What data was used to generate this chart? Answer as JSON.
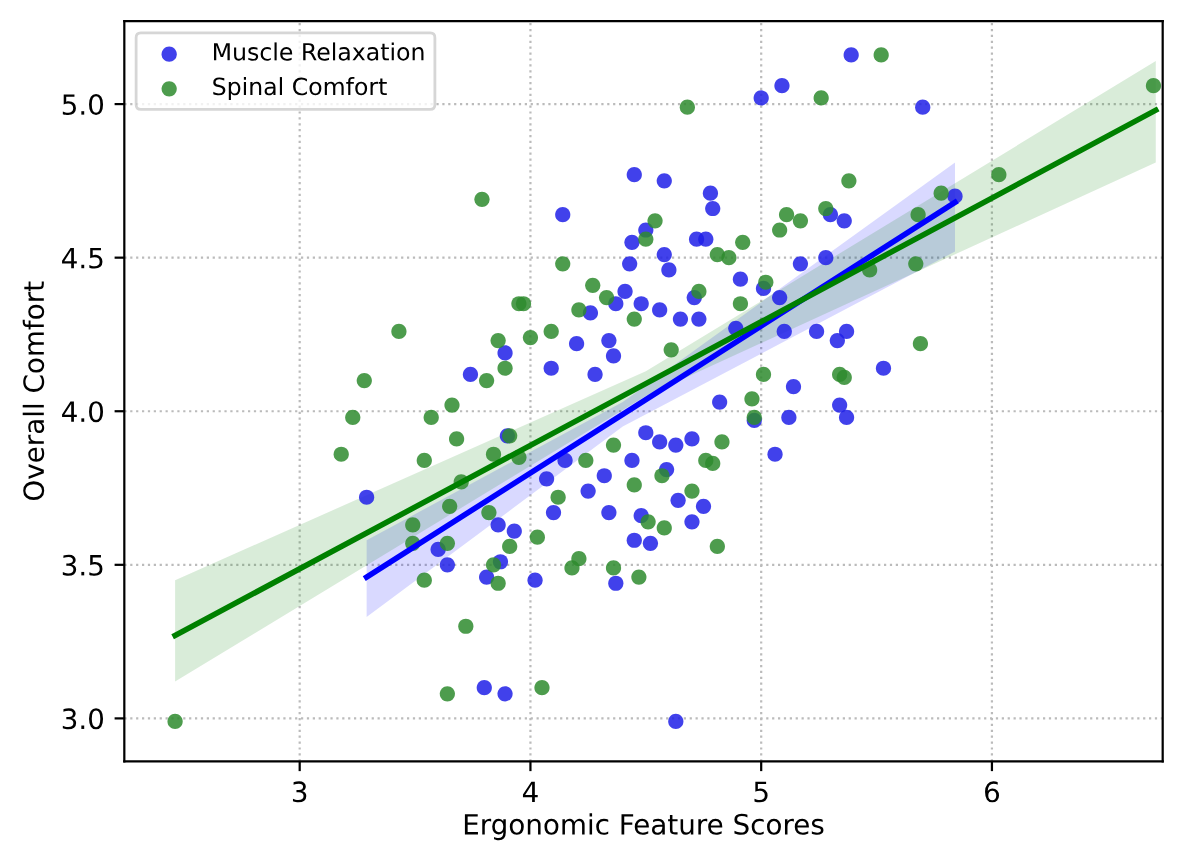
{
  "chart_data": {
    "type": "scatter",
    "xlabel": "Ergonomic Feature Scores",
    "ylabel": "Overall Comfort",
    "xlim": [
      2.24,
      6.74
    ],
    "ylim": [
      2.86,
      5.27
    ],
    "xticks": [
      3,
      4,
      5,
      6
    ],
    "yticks": [
      {
        "value": 3,
        "label": "3.0"
      },
      3.5,
      {
        "value": 4,
        "label": "4.0"
      },
      4.5,
      {
        "value": 5,
        "label": "5.0"
      }
    ],
    "grid": true,
    "legend": "top left",
    "series": [
      {
        "name": "Muscle Relaxation",
        "marker": "circle",
        "color": "#2020e8",
        "x": [
          5.39,
          5.09,
          5.0,
          5.7,
          4.45,
          4.58,
          4.78,
          4.79,
          4.14,
          5.53,
          5.84,
          4.63,
          3.8,
          3.89,
          3.29,
          3.6,
          3.64,
          3.81,
          3.86,
          3.87,
          3.9,
          3.89,
          3.74,
          3.93,
          4.5,
          4.44,
          4.43,
          4.58,
          4.6,
          4.72,
          4.76,
          4.91,
          5.17,
          5.28,
          5.3,
          5.36,
          4.41,
          4.37,
          4.48,
          4.26,
          4.56,
          4.65,
          4.73,
          4.2,
          4.34,
          4.36,
          4.09,
          4.28,
          5.1,
          5.24,
          5.33,
          5.37,
          5.08,
          4.89,
          5.01,
          4.71,
          4.07,
          4.1,
          4.02,
          4.25,
          4.32,
          4.34,
          4.37,
          4.45,
          4.52,
          4.48,
          4.64,
          4.7,
          4.75,
          4.56,
          4.63,
          4.7,
          4.5,
          4.44,
          4.15,
          5.06,
          5.12,
          5.14,
          4.97,
          5.37,
          5.34,
          4.82,
          4.59
        ],
        "values": [
          5.16,
          5.06,
          5.02,
          4.99,
          4.77,
          4.75,
          4.71,
          4.66,
          4.64,
          4.14,
          4.7,
          2.99,
          3.1,
          3.08,
          3.72,
          3.55,
          3.5,
          3.46,
          3.63,
          3.51,
          3.92,
          4.19,
          4.12,
          3.61,
          4.59,
          4.55,
          4.48,
          4.51,
          4.46,
          4.56,
          4.56,
          4.43,
          4.48,
          4.5,
          4.64,
          4.62,
          4.39,
          4.35,
          4.35,
          4.32,
          4.33,
          4.3,
          4.3,
          4.22,
          4.23,
          4.18,
          4.14,
          4.12,
          4.26,
          4.26,
          4.23,
          4.26,
          4.37,
          4.27,
          4.4,
          4.37,
          3.78,
          3.67,
          3.45,
          3.74,
          3.79,
          3.67,
          3.44,
          3.58,
          3.57,
          3.66,
          3.71,
          3.64,
          3.69,
          3.9,
          3.89,
          3.91,
          3.93,
          3.84,
          3.84,
          3.86,
          3.98,
          4.08,
          3.97,
          3.98,
          4.02,
          4.03,
          3.81
        ]
      },
      {
        "name": "Spinal Comfort",
        "marker": "circle",
        "color": "#2e8b2e",
        "x": [
          2.46,
          3.79,
          5.52,
          4.68,
          5.26,
          6.7,
          6.03,
          5.38,
          5.78,
          5.68,
          5.67,
          5.69,
          5.47,
          3.64,
          4.05,
          3.72,
          3.18,
          3.23,
          3.28,
          3.43,
          3.54,
          3.57,
          3.66,
          3.68,
          3.49,
          3.49,
          3.54,
          3.64,
          3.65,
          3.7,
          3.84,
          3.82,
          3.91,
          3.86,
          3.84,
          3.91,
          3.95,
          3.86,
          3.95,
          3.81,
          3.89,
          4.54,
          4.5,
          4.81,
          4.92,
          4.86,
          5.11,
          5.17,
          5.08,
          5.28,
          4.14,
          4.27,
          4.33,
          4.45,
          4.73,
          3.97,
          4.09,
          4.21,
          4.61,
          4.91,
          5.02,
          5.34,
          5.01,
          4.0,
          4.12,
          4.03,
          4.18,
          4.21,
          4.36,
          4.47,
          4.58,
          4.51,
          4.81,
          4.7,
          4.57,
          4.76,
          4.79,
          4.83,
          4.36,
          4.24,
          4.45,
          4.97,
          4.96,
          5.36
        ],
        "values": [
          2.99,
          4.69,
          5.16,
          4.99,
          5.02,
          5.06,
          4.77,
          4.75,
          4.71,
          4.64,
          4.48,
          4.22,
          4.46,
          3.08,
          3.1,
          3.3,
          3.86,
          3.98,
          4.1,
          4.26,
          3.84,
          3.98,
          4.02,
          3.91,
          3.63,
          3.57,
          3.45,
          3.57,
          3.69,
          3.77,
          3.86,
          3.67,
          3.56,
          3.44,
          3.5,
          3.92,
          3.85,
          4.23,
          4.35,
          4.1,
          4.14,
          4.62,
          4.56,
          4.51,
          4.55,
          4.5,
          4.64,
          4.62,
          4.59,
          4.66,
          4.48,
          4.41,
          4.37,
          4.3,
          4.39,
          4.35,
          4.26,
          4.33,
          4.2,
          4.35,
          4.42,
          4.12,
          4.12,
          4.24,
          3.72,
          3.59,
          3.49,
          3.52,
          3.49,
          3.46,
          3.62,
          3.64,
          3.56,
          3.74,
          3.79,
          3.84,
          3.83,
          3.9,
          3.89,
          3.84,
          3.76,
          3.98,
          4.04,
          4.11
        ]
      },
      {
        "type": "line",
        "color": "#0000ff",
        "x": [
          3.29,
          4.4,
          5.84
        ],
        "values": [
          3.46,
          3.99,
          4.68
        ],
        "lower": [
          3.33,
          3.95,
          4.52
        ],
        "upper": [
          3.58,
          4.03,
          4.81
        ]
      },
      {
        "type": "line",
        "color": "#008000",
        "x": [
          2.46,
          4.5,
          6.71
        ],
        "values": [
          3.27,
          4.09,
          4.98
        ],
        "lower": [
          3.12,
          4.05,
          4.81
        ],
        "upper": [
          3.45,
          4.13,
          5.14
        ]
      }
    ]
  }
}
